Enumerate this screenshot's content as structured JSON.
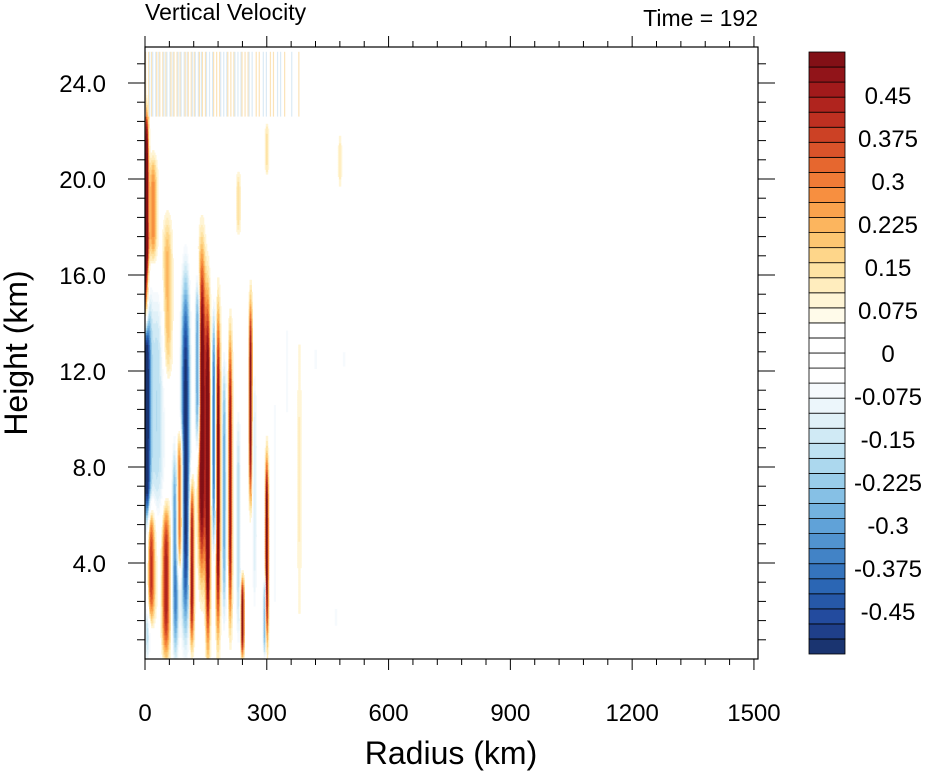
{
  "chart_data": {
    "type": "heatmap",
    "title_left": "Vertical Velocity",
    "title_right": "Time = 192",
    "xlabel": "Radius (km)",
    "ylabel": "Height (km)",
    "xlim": [
      0,
      1510
    ],
    "ylim": [
      0,
      25.5
    ],
    "x_ticks": [
      0,
      300,
      600,
      900,
      1200,
      1500
    ],
    "x_tick_labels": [
      "0",
      "300",
      "600",
      "900",
      "1200",
      "1500"
    ],
    "y_ticks": [
      4,
      8,
      12,
      16,
      20,
      24
    ],
    "y_tick_labels": [
      "4.0",
      "8.0",
      "12.0",
      "16.0",
      "20.0",
      "24.0"
    ],
    "colorbar": {
      "levels": [
        -0.525,
        -0.5,
        -0.475,
        -0.45,
        -0.425,
        -0.4,
        -0.375,
        -0.35,
        -0.325,
        -0.3,
        -0.275,
        -0.25,
        -0.225,
        -0.2,
        -0.175,
        -0.15,
        -0.125,
        -0.1,
        -0.075,
        -0.05,
        -0.025,
        0,
        0.025,
        0.05,
        0.075,
        0.1,
        0.125,
        0.15,
        0.175,
        0.2,
        0.225,
        0.25,
        0.275,
        0.3,
        0.325,
        0.35,
        0.375,
        0.4,
        0.425,
        0.45,
        0.475,
        0.5,
        0.525
      ],
      "tick_values": [
        0.45,
        0.375,
        0.3,
        0.225,
        0.15,
        0.075,
        0,
        -0.075,
        -0.15,
        -0.225,
        -0.3,
        -0.375,
        -0.45
      ],
      "tick_labels": [
        "0.45",
        "0.375",
        "0.3",
        "0.225",
        "0.15",
        "0.075",
        "0",
        "-0.075",
        "-0.15",
        "-0.225",
        "-0.3",
        "-0.375",
        "-0.45"
      ],
      "colors": [
        "#1a3470",
        "#1f3f8a",
        "#234b9e",
        "#2658a8",
        "#2b66b4",
        "#3574bd",
        "#4283c6",
        "#5193cf",
        "#60a2d8",
        "#73b2df",
        "#86c0e5",
        "#99cdea",
        "#acd8ee",
        "#bfe2f2",
        "#d0eaf5",
        "#e0f1f8",
        "#ecf6fb",
        "#f6fafd",
        "#ffffff",
        "#ffffff",
        "#ffffff",
        "#ffffff",
        "#fffbea",
        "#fff5d6",
        "#ffedbe",
        "#fee3a4",
        "#fed68a",
        "#fdc672",
        "#fcb55e",
        "#faa24d",
        "#f78f40",
        "#f07b37",
        "#e6672f",
        "#da532a",
        "#cc4125",
        "#be3021",
        "#b0241e",
        "#a11a1b",
        "#911419",
        "#821016"
      ]
    },
    "features": [
      {
        "r": 4,
        "z0": 17.5,
        "z1": 22.5,
        "w": 0.55,
        "dr": 5
      },
      {
        "r": 6,
        "z0": 0.5,
        "z1": 7.0,
        "w": -0.3,
        "dr": 7
      },
      {
        "r": 4,
        "z0": 6.5,
        "z1": 15.0,
        "w": -0.55,
        "dr": 10
      },
      {
        "r": 2,
        "z0": 14.0,
        "z1": 17.5,
        "w": 0.55,
        "dr": 7
      },
      {
        "r": 12,
        "z0": 2.0,
        "z1": 6.0,
        "w": 0.45,
        "dr": 12
      },
      {
        "r": 30,
        "z0": 6.0,
        "z1": 15.0,
        "w": -0.2,
        "dr": 20
      },
      {
        "r": 20,
        "z0": 17.0,
        "z1": 20.5,
        "w": 0.25,
        "dr": 10
      },
      {
        "r": 52,
        "z0": 0.5,
        "z1": 6.0,
        "w": 0.4,
        "dr": 10
      },
      {
        "r": 55,
        "z0": 12.0,
        "z1": 18.0,
        "w": 0.2,
        "dr": 12
      },
      {
        "r": 75,
        "z0": 0.5,
        "z1": 8.5,
        "w": -0.4,
        "dr": 8
      },
      {
        "r": 85,
        "z0": 4.0,
        "z1": 9.0,
        "w": 0.45,
        "dr": 8
      },
      {
        "r": 100,
        "z0": 1.5,
        "z1": 15.5,
        "w": -0.55,
        "dr": 11
      },
      {
        "r": 115,
        "z0": 1.0,
        "z1": 7.0,
        "w": 0.5,
        "dr": 6
      },
      {
        "r": 130,
        "z0": 9.0,
        "z1": 15.5,
        "w": -0.45,
        "dr": 6
      },
      {
        "r": 140,
        "z0": 4.0,
        "z1": 16.5,
        "w": 0.55,
        "dr": 9
      },
      {
        "r": 155,
        "z0": 1.0,
        "z1": 14.5,
        "w": 0.55,
        "dr": 6
      },
      {
        "r": 170,
        "z0": 5.0,
        "z1": 14.0,
        "w": -0.4,
        "dr": 6
      },
      {
        "r": 180,
        "z0": 1.5,
        "z1": 14.0,
        "w": 0.5,
        "dr": 6
      },
      {
        "r": 195,
        "z0": 2.0,
        "z1": 12.0,
        "w": -0.3,
        "dr": 6
      },
      {
        "r": 210,
        "z0": 2.0,
        "z1": 13.0,
        "w": 0.45,
        "dr": 5
      },
      {
        "r": 230,
        "z0": 1.0,
        "z1": 10.0,
        "w": -0.2,
        "dr": 6
      },
      {
        "r": 240,
        "z0": 0.5,
        "z1": 3.0,
        "w": 0.5,
        "dr": 4
      },
      {
        "r": 260,
        "z0": 7.0,
        "z1": 14.5,
        "w": 0.5,
        "dr": 4
      },
      {
        "r": 270,
        "z0": 2.0,
        "z1": 12.0,
        "w": -0.15,
        "dr": 6
      },
      {
        "r": 300,
        "z0": 1.0,
        "z1": 8.0,
        "w": 0.55,
        "dr": 4
      },
      {
        "r": 295,
        "z0": 0.5,
        "z1": 3.0,
        "w": -0.35,
        "dr": 4
      },
      {
        "r": 320,
        "z0": 1.0,
        "z1": 12.0,
        "w": -0.1,
        "dr": 6
      },
      {
        "r": 350,
        "z0": 10.0,
        "z1": 14.0,
        "w": -0.1,
        "dr": 6
      },
      {
        "r": 380,
        "z0": 1.0,
        "z1": 14.0,
        "w": 0.08,
        "dr": 6
      },
      {
        "r": 420,
        "z0": 11.0,
        "z1": 14.0,
        "w": -0.08,
        "dr": 5
      },
      {
        "r": 470,
        "z0": 0.5,
        "z1": 3.0,
        "w": -0.08,
        "dr": 5
      },
      {
        "r": 490,
        "z0": 11.5,
        "z1": 13.5,
        "w": -0.08,
        "dr": 5
      },
      {
        "r": 480,
        "z0": 20.0,
        "z1": 21.5,
        "w": 0.1,
        "dr": 5
      },
      {
        "r": 300,
        "z0": 20.5,
        "z1": 22.0,
        "w": 0.12,
        "dr": 5
      },
      {
        "r": 230,
        "z0": 18.0,
        "z1": 20.0,
        "w": 0.12,
        "dr": 6
      }
    ],
    "upper_stripes": {
      "r0": 0,
      "r1": 740,
      "z0": 22.5,
      "z1": 25.3,
      "w": 0.05
    }
  }
}
